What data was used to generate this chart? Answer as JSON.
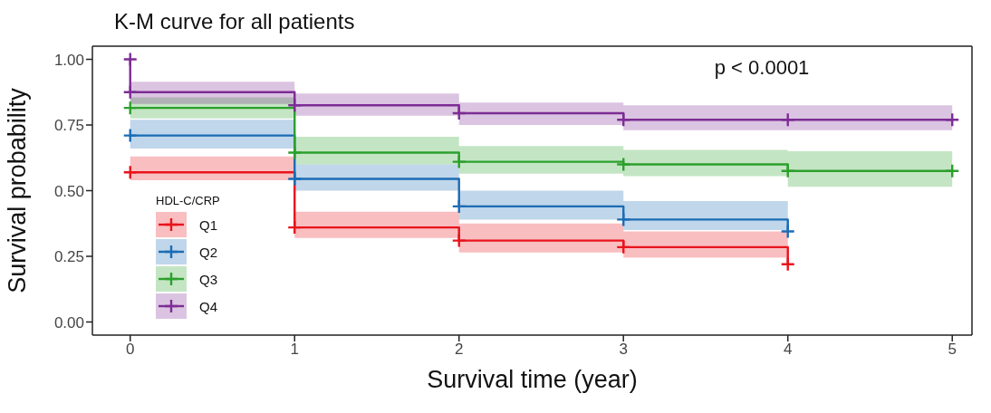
{
  "chart_data": {
    "type": "step",
    "title": "K-M curve for all patients",
    "xlabel": "Survival time (year)",
    "ylabel": "Survival probability",
    "legend_title": "HDL-C/CRP",
    "annotations": [
      "p < 0.0001"
    ],
    "xlim": [
      -0.23,
      5.12
    ],
    "xticks": [
      0,
      1,
      2,
      3,
      4,
      5
    ],
    "ylim": [
      -0.05,
      1.05
    ],
    "yticks": [
      {
        "value": 0,
        "label": "0.00"
      },
      {
        "value": 0.25,
        "label": "0.25"
      },
      {
        "value": 0.5,
        "label": "0.50"
      },
      {
        "value": 0.75,
        "label": "0.75"
      },
      {
        "value": 1,
        "label": "1.00"
      }
    ],
    "grid": false,
    "legend": "bottom left",
    "marker": "cross",
    "line_style": "solid",
    "series": [
      {
        "name": "Q1",
        "color": "#e8141c",
        "x": [
          0,
          1,
          2,
          3,
          4
        ],
        "values": [
          0.57,
          0.36,
          0.31,
          0.285,
          0.22
        ],
        "lower": [
          0.54,
          0.32,
          0.265,
          0.245,
          0.245
        ],
        "upper": [
          0.63,
          0.42,
          0.375,
          0.345,
          0.345
        ]
      },
      {
        "name": "Q2",
        "color": "#1b6cb5",
        "x": [
          0,
          1,
          2,
          3,
          4
        ],
        "values": [
          0.71,
          0.545,
          0.44,
          0.39,
          0.345
        ],
        "lower": [
          0.66,
          0.5,
          0.39,
          0.35,
          0.35
        ],
        "upper": [
          0.77,
          0.6,
          0.5,
          0.46,
          0.46
        ]
      },
      {
        "name": "Q3",
        "color": "#2ca02c",
        "x": [
          0,
          1,
          2,
          3,
          4,
          5
        ],
        "values": [
          0.815,
          0.645,
          0.61,
          0.6,
          0.575,
          0.575
        ],
        "lower": [
          0.775,
          0.6,
          0.565,
          0.555,
          0.515,
          0.515
        ],
        "upper": [
          0.855,
          0.705,
          0.67,
          0.655,
          0.65,
          0.65
        ]
      },
      {
        "name": "Q4",
        "color": "#7d2c95",
        "x": [
          0,
          0,
          1,
          2,
          3,
          4,
          5
        ],
        "values": [
          1,
          0.875,
          0.825,
          0.795,
          0.77,
          0.77,
          0.77
        ],
        "lower": [
          null,
          0.83,
          0.785,
          0.75,
          0.73,
          0.73,
          0.73
        ],
        "upper": [
          null,
          0.915,
          0.87,
          0.835,
          0.825,
          0.825,
          0.825
        ]
      }
    ]
  }
}
